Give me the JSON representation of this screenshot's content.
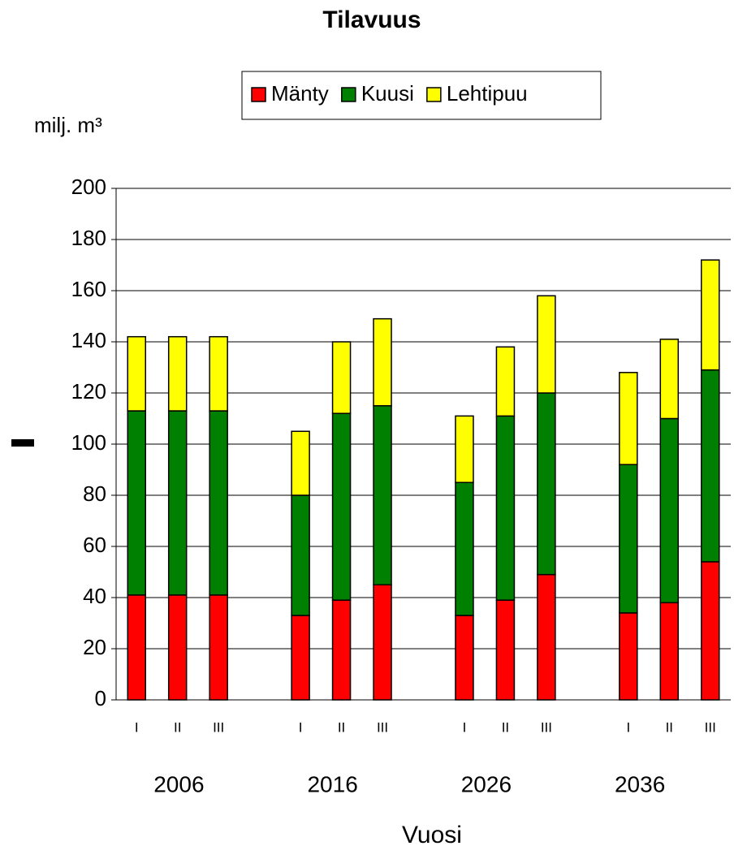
{
  "chart_data": {
    "type": "stacked_bar",
    "title": "Tilavuus",
    "y_label": "milj. m³",
    "x_label": "Vuosi",
    "categories": [
      "I",
      "II",
      "III",
      null,
      "I",
      "II",
      "III",
      null,
      "I",
      "II",
      "III",
      null,
      "I",
      "II",
      "III"
    ],
    "group_labels": [
      "2006",
      "2016",
      "2026",
      "2036"
    ],
    "series": [
      {
        "name": "Mänty",
        "color": "#ff0000",
        "values": [
          41,
          41,
          41,
          null,
          33,
          39,
          45,
          null,
          33,
          39,
          49,
          null,
          34,
          38,
          54
        ]
      },
      {
        "name": "Kuusi",
        "color": "#008000",
        "values": [
          72,
          72,
          72,
          null,
          47,
          73,
          70,
          null,
          52,
          72,
          71,
          null,
          58,
          72,
          75
        ]
      },
      {
        "name": "Lehtipuu",
        "color": "#ffff00",
        "values": [
          29,
          29,
          29,
          null,
          25,
          28,
          34,
          null,
          26,
          27,
          38,
          null,
          36,
          31,
          43
        ]
      }
    ],
    "ylim": [
      0,
      200
    ],
    "yticks": [
      0,
      20,
      40,
      60,
      80,
      100,
      120,
      140,
      160,
      180,
      200
    ],
    "grid": true,
    "legend": "top"
  }
}
